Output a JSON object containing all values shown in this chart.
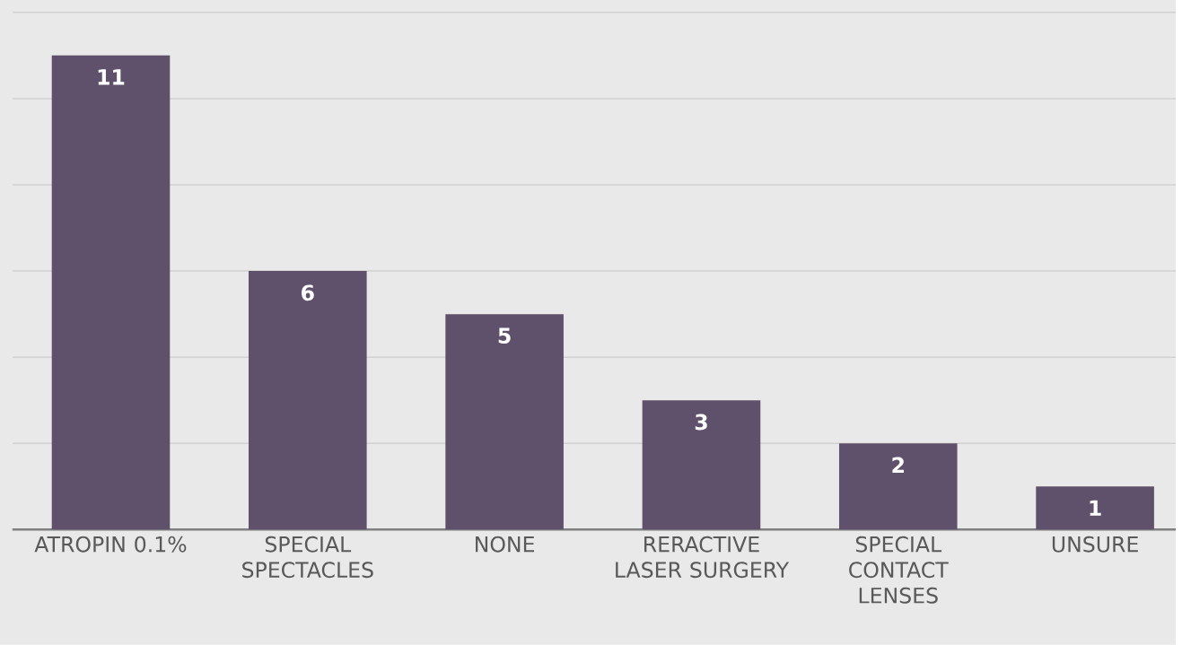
{
  "chart_data": {
    "type": "bar",
    "categories": [
      "ATROPIN 0.1%",
      "SPECIAL SPECTACLES",
      "NONE",
      "RERACTIVE LASER SURGERY",
      "SPECIAL CONTACT LENSES",
      "UNSURE"
    ],
    "values": [
      11,
      6,
      5,
      3,
      2,
      1
    ],
    "color": "#5f506b",
    "ylim": [
      0,
      12
    ],
    "yticks": [
      {
        "value": 0,
        "label": null
      },
      {
        "value": 2,
        "label": null
      },
      {
        "value": 4,
        "label": null
      },
      {
        "value": 6,
        "label": null
      },
      {
        "value": 8,
        "label": null
      },
      {
        "value": 10,
        "label": null
      },
      {
        "value": 12,
        "label": null
      }
    ],
    "grid": "y",
    "data_labels": true,
    "tick_labels": "x"
  }
}
